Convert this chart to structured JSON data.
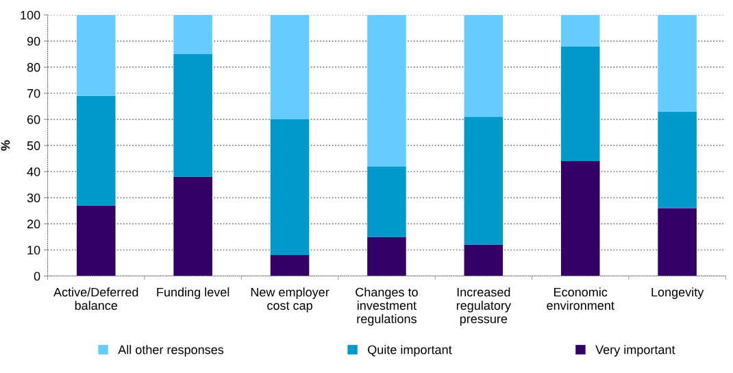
{
  "chart_data": {
    "type": "bar",
    "stacked": true,
    "ylabel": "%",
    "categories": [
      "Active/Deferred\nbalance",
      "Funding level",
      "New employer\ncost cap",
      "Changes to\ninvestment\nregulations",
      "Increased\nregulatory\npressure",
      "Economic\nenvironment",
      "Longevity"
    ],
    "series": [
      {
        "name": "Very important",
        "color": "#330066",
        "values": [
          27,
          38,
          8,
          15,
          12,
          44,
          26
        ]
      },
      {
        "name": "Quite important",
        "color": "#0099cc",
        "values": [
          42,
          47,
          52,
          27,
          49,
          44,
          37
        ]
      },
      {
        "name": "All other responses",
        "color": "#66ccff",
        "values": [
          31,
          15,
          40,
          58,
          39,
          12,
          37
        ]
      }
    ],
    "ylim": [
      0,
      100
    ],
    "yticks": [
      0,
      10,
      20,
      30,
      40,
      50,
      60,
      70,
      80,
      90,
      100
    ],
    "grid": "y",
    "legend": "bottom"
  }
}
